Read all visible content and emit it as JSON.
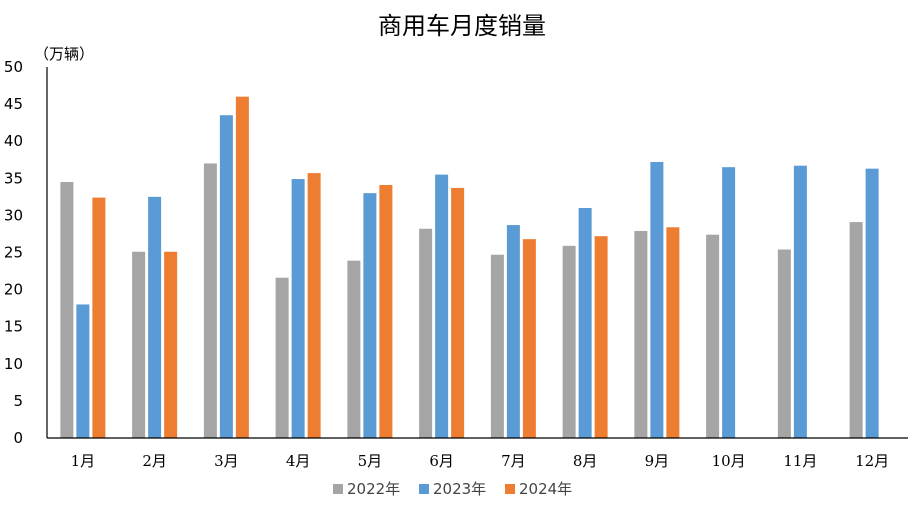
{
  "chart_data": {
    "type": "bar",
    "title": "商用车月度销量",
    "unit_label": "（万辆）",
    "categories": [
      "1月",
      "2月",
      "3月",
      "4月",
      "5月",
      "6月",
      "7月",
      "8月",
      "9月",
      "10月",
      "11月",
      "12月"
    ],
    "yticks": [
      "0",
      "5",
      "10",
      "15",
      "20",
      "25",
      "30",
      "35",
      "40",
      "45",
      "50"
    ],
    "ylim": [
      0,
      50
    ],
    "grid": false,
    "legend_position": "bottom",
    "series": [
      {
        "name": "2022年",
        "color": "#a5a5a5",
        "values": [
          34.5,
          25.1,
          37.0,
          21.6,
          23.9,
          28.2,
          24.7,
          25.9,
          27.9,
          27.4,
          25.4,
          29.1
        ]
      },
      {
        "name": "2023年",
        "color": "#5b9bd5",
        "values": [
          18.0,
          32.5,
          43.5,
          34.9,
          33.0,
          35.5,
          28.7,
          31.0,
          37.2,
          36.5,
          36.7,
          36.3
        ]
      },
      {
        "name": "2024年",
        "color": "#ed7d31",
        "values": [
          32.4,
          25.1,
          46.0,
          35.7,
          34.1,
          33.7,
          26.8,
          27.2,
          28.4,
          null,
          null,
          null
        ]
      }
    ]
  }
}
